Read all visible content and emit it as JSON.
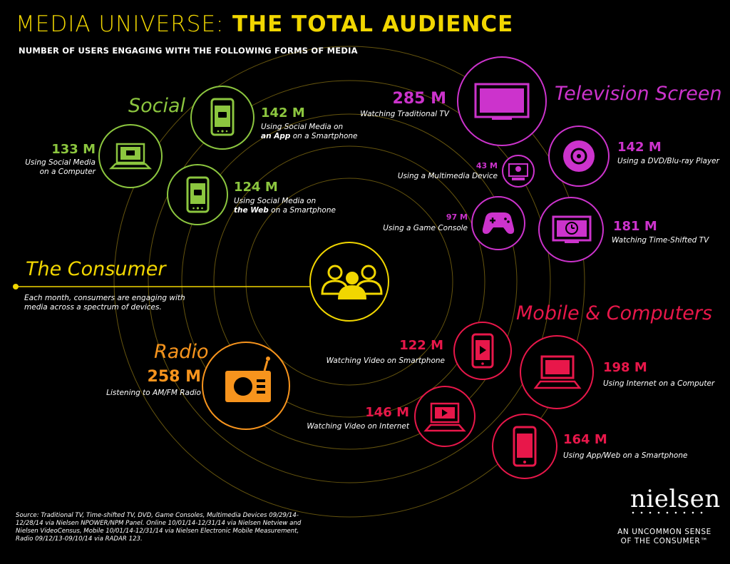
{
  "header": {
    "title_part1": "MEDIA UNIVERSE:",
    "title_part2": "THE TOTAL AUDIENCE",
    "subtitle": "NUMBER OF USERS ENGAGING WITH THE FOLLOWING FORMS OF MEDIA"
  },
  "colors": {
    "consumer": "#f1d600",
    "social": "#8cc63f",
    "television": "#cc33cc",
    "mobile": "#e8174a",
    "radio": "#f7941d",
    "orbit": "#b89a1a"
  },
  "consumer": {
    "label": "The Consumer",
    "desc_line1": "Each month, consumers are engaging with",
    "desc_line2": "media across a spectrum of devices.",
    "icon": "people-group-icon"
  },
  "social": {
    "label": "Social",
    "items": [
      {
        "value": "142 M",
        "line1": "Using Social Media on",
        "bold": "an App",
        "rest": " on a Smartphone",
        "icon": "smartphone-chat-icon"
      },
      {
        "value": "133 M",
        "line1": "Using Social Media",
        "line2": "on a Computer",
        "icon": "laptop-chat-icon"
      },
      {
        "value": "124 M",
        "line1": "Using Social Media on",
        "bold": "the Web",
        "rest": " on a Smartphone",
        "icon": "smartphone-chat-icon"
      }
    ]
  },
  "television": {
    "label": "Television Screen",
    "items": [
      {
        "value": "285 M",
        "desc": "Watching Traditional TV",
        "icon": "tv-icon"
      },
      {
        "value": "142 M",
        "desc": "Using a DVD/Blu-ray Player",
        "icon": "disc-icon"
      },
      {
        "value": "43 M",
        "desc": "Using a Multimedia Device",
        "icon": "multimedia-device-icon"
      },
      {
        "value": "97 M",
        "desc": "Using a Game Console",
        "icon": "gamepad-icon"
      },
      {
        "value": "181 M",
        "desc": "Watching Time-Shifted TV",
        "icon": "tv-clock-icon"
      }
    ]
  },
  "mobile": {
    "label": "Mobile & Computers",
    "items": [
      {
        "value": "122 M",
        "desc": "Watching Video on Smartphone",
        "icon": "smartphone-play-icon"
      },
      {
        "value": "198 M",
        "desc": "Using Internet on a Computer",
        "icon": "laptop-icon"
      },
      {
        "value": "146 M",
        "desc": "Watching Video on Internet",
        "icon": "laptop-play-icon"
      },
      {
        "value": "164 M",
        "desc": "Using App/Web on a Smartphone",
        "icon": "smartphone-icon"
      }
    ]
  },
  "radio": {
    "label": "Radio",
    "value": "258 M",
    "desc": "Listening to AM/FM Radio",
    "icon": "radio-icon"
  },
  "source": {
    "text": "Source: Traditional TV, Time-shifted TV, DVD, Game Consoles, Multimedia Devices 09/29/14-12/28/14 via Nielsen NPOWER/NPM Panel. Online 10/01/14-12/31/14 via Nielsen Netview and Nielsen VideoCensus, Mobile 10/01/14-12/31/14 via Nielsen Electronic Mobile Measurement, Radio 09/12/13-09/10/14 via RADAR 123."
  },
  "brand": {
    "logo": "nielsen",
    "tagline1": "AN UNCOMMON SENSE",
    "tagline2": "OF THE CONSUMER™"
  }
}
